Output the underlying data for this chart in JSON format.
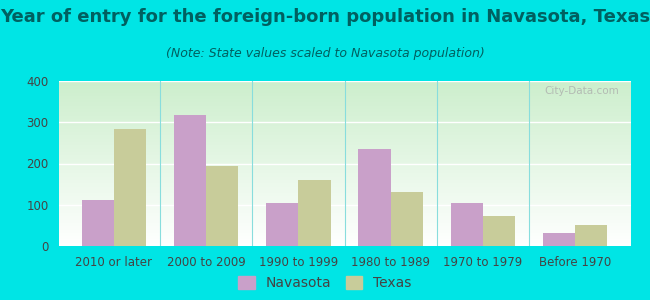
{
  "title": "Year of entry for the foreign-born population in Navasota, Texas",
  "subtitle": "(Note: State values scaled to Navasota population)",
  "categories": [
    "2010 or later",
    "2000 to 2009",
    "1990 to 1999",
    "1980 to 1989",
    "1970 to 1979",
    "Before 1970"
  ],
  "navasota_values": [
    112,
    318,
    105,
    235,
    105,
    32
  ],
  "texas_values": [
    283,
    195,
    160,
    132,
    73,
    50
  ],
  "navasota_color": "#c9a0c9",
  "texas_color": "#c8cc9a",
  "background_color": "#00e5e5",
  "ylim": [
    0,
    400
  ],
  "yticks": [
    0,
    100,
    200,
    300,
    400
  ],
  "bar_width": 0.35,
  "title_fontsize": 13,
  "subtitle_fontsize": 9,
  "tick_fontsize": 8.5,
  "legend_fontsize": 10,
  "title_color": "#006060",
  "subtitle_color": "#006060",
  "tick_color": "#444444"
}
